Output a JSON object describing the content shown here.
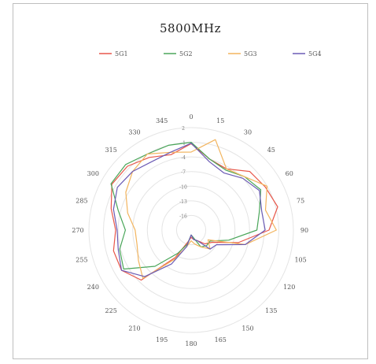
{
  "chart_data": {
    "type": "line",
    "polar": true,
    "title": "5800MHz",
    "angle_labels": [
      "0",
      "15",
      "30",
      "45",
      "60",
      "75",
      "90",
      "105",
      "120",
      "135",
      "150",
      "165",
      "180",
      "195",
      "210",
      "225",
      "240",
      "255",
      "270",
      "285",
      "300",
      "315",
      "330",
      "345"
    ],
    "radial_labels": [
      "2",
      "-1",
      "-4",
      "-7",
      "-10",
      "-13",
      "-16"
    ],
    "radial_range": [
      -19,
      2
    ],
    "legend_position": "top",
    "series": [
      {
        "name": "5G1",
        "color": "#e8574a",
        "values": [
          -1.3,
          -4.0,
          -4.5,
          -2.0,
          -1.4,
          -0.6,
          -3.0,
          -9.0,
          -14.0,
          -15.0,
          -16.5,
          -17.0,
          -17.5,
          -16.5,
          -12.5,
          -4.5,
          -2.5,
          -2.5,
          -3.5,
          -2.0,
          -0.2,
          -0.5,
          -1.8,
          -3.0
        ]
      },
      {
        "name": "5G2",
        "color": "#4aa65a",
        "values": [
          -1.0,
          -4.0,
          -4.8,
          -3.5,
          -2.5,
          -4.5,
          -5.5,
          -11.0,
          -14.5,
          -14.5,
          -15.0,
          -17.5,
          -18.0,
          -16.0,
          -13.5,
          -8.5,
          -3.0,
          -3.8,
          -5.5,
          -3.5,
          0.0,
          0.0,
          -1.0,
          -1.0
        ]
      },
      {
        "name": "5G3",
        "color": "#f2b45e",
        "values": [
          -3.0,
          0.2,
          -4.5,
          -3.5,
          -1.0,
          -3.2,
          -1.5,
          -7.5,
          -15.0,
          -13.5,
          -15.0,
          -16.0,
          -16.8,
          -15.5,
          -12.0,
          -5.0,
          -6.5,
          -7.5,
          -7.5,
          -5.5,
          -3.5,
          -2.0,
          -1.0,
          -2.5
        ]
      },
      {
        "name": "5G4",
        "color": "#6b5bb5",
        "values": [
          -1.2,
          -4.5,
          -5.5,
          -4.0,
          -2.8,
          -4.0,
          -3.8,
          -7.5,
          -13.0,
          -13.5,
          -16.5,
          -17.0,
          -18.0,
          -15.5,
          -11.0,
          -5.5,
          -2.5,
          -3.5,
          -3.8,
          -2.5,
          -1.5,
          -2.0,
          -2.8,
          -2.5
        ]
      }
    ]
  }
}
